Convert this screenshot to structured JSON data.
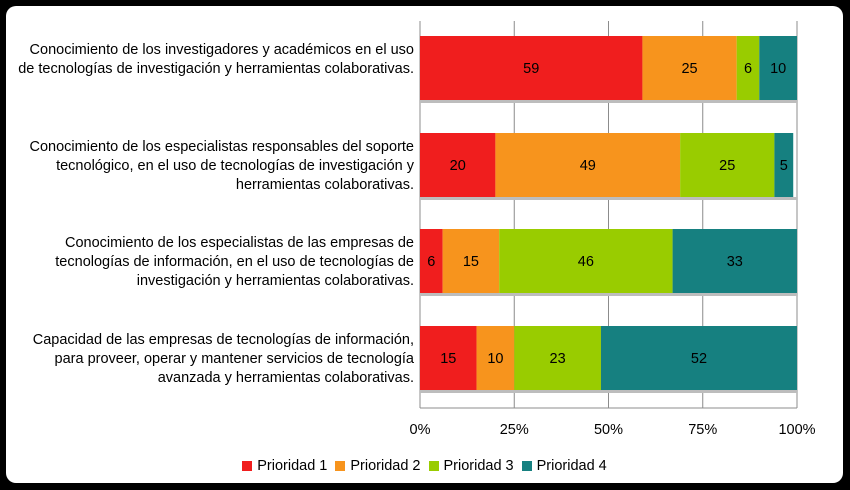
{
  "chart_data": {
    "type": "bar",
    "orientation": "horizontal",
    "stacked": true,
    "percent_axis": true,
    "categories": [
      "Conocimiento de los investigadores y académicos en el uso de tecnologías de investigación y herramientas colaborativas.",
      "Conocimiento de los especialistas responsables del soporte tecnológico, en el uso de tecnologías de investigación y herramientas colaborativas.",
      "Conocimiento de los especialistas de las empresas de tecnologías de información, en el uso de tecnologías de investigación y herramientas colaborativas.",
      "Capacidad de las empresas de tecnologías de información, para proveer, operar y mantener servicios de tecnología avanzada y herramientas colaborativas."
    ],
    "series": [
      {
        "name": "Prioridad 1",
        "color": "#f01e1e",
        "values": [
          59,
          20,
          6,
          15
        ]
      },
      {
        "name": "Prioridad 2",
        "color": "#f7941d",
        "values": [
          25,
          49,
          15,
          10
        ]
      },
      {
        "name": "Prioridad 3",
        "color": "#99cc00",
        "values": [
          6,
          25,
          46,
          23
        ]
      },
      {
        "name": "Prioridad 4",
        "color": "#168080",
        "values": [
          10,
          5,
          33,
          52
        ]
      }
    ],
    "xticks": [
      "0%",
      "25%",
      "50%",
      "75%",
      "100%"
    ],
    "xlim": [
      0,
      100
    ],
    "grid": true,
    "legend_position": "bottom",
    "title": "",
    "xlabel": "",
    "ylabel": ""
  }
}
